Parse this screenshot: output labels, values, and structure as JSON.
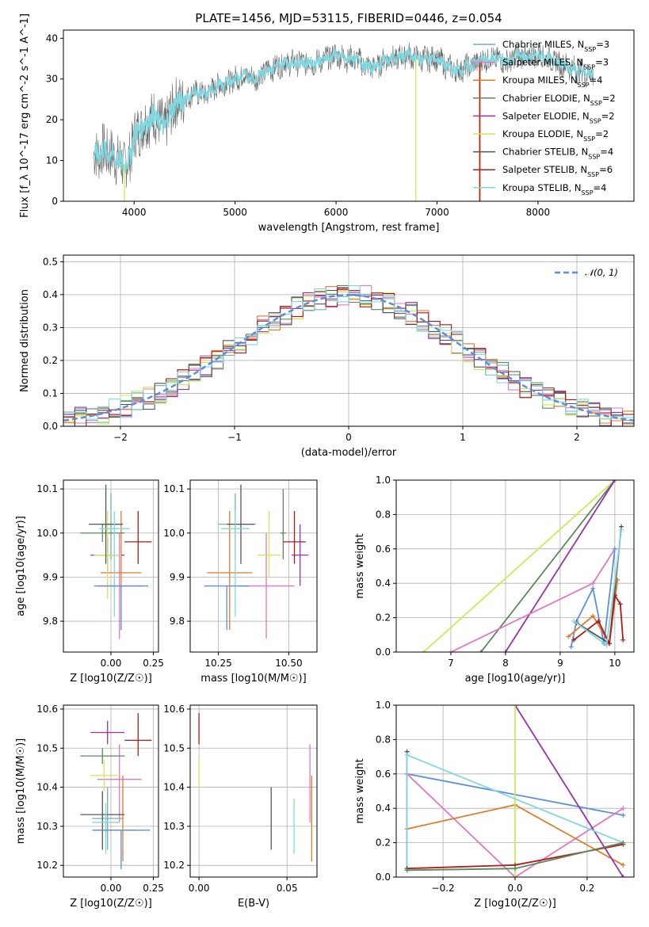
{
  "figure": {
    "title": "PLATE=1456, MJD=53115, FIBERID=0446, z=0.054",
    "colors": {
      "Chabrier MILES": "#6fb0b0",
      "Salpeter MILES": "#e377c2",
      "Kroupa MILES": "#e07b2a",
      "Chabrier ELODIE": "#5b8a5b",
      "Salpeter ELODIE": "#9932aa",
      "Kroupa ELODIE": "#cfe856",
      "Chabrier STELIB": "#555555",
      "Salpeter STELIB": "#b21a1a",
      "Kroupa STELIB": "#7fd8e0",
      "main_grey": "#8a8a8a",
      "blue": "#5b8ee0",
      "pink": "#e88bc0"
    }
  },
  "chart_data": [
    {
      "id": "spectrum",
      "type": "line",
      "title": "PLATE=1456, MJD=53115, FIBERID=0446, z=0.054",
      "xlabel": "wavelength [Angstrom, rest frame]",
      "ylabel": "Flux [f_λ 10^-17 erg cm^-2 s^-1 A^-1]",
      "xlim": [
        3300,
        8950
      ],
      "ylim": [
        0,
        42
      ],
      "xticks": [
        4000,
        5000,
        6000,
        7000,
        8000
      ],
      "yticks": [
        0,
        10,
        20,
        30,
        40
      ],
      "grid": false,
      "legend_position": "top-right",
      "continuum": {
        "x": [
          3600,
          3700,
          3800,
          3900,
          3950,
          4000,
          4100,
          4200,
          4300,
          4400,
          4500,
          4600,
          4700,
          4800,
          4900,
          5000,
          5100,
          5200,
          5300,
          5400,
          5500,
          5600,
          5700,
          5800,
          5900,
          6000,
          6100,
          6200,
          6300,
          6400,
          6500,
          6600,
          6700,
          6800,
          6900,
          7000,
          7100,
          7200,
          7300,
          7400,
          7500,
          7600,
          7700,
          7800,
          7900,
          8000,
          8100,
          8200,
          8300,
          8400,
          8550
        ],
        "y": [
          11,
          12.5,
          11,
          9,
          10,
          16,
          19,
          21,
          18,
          24,
          25,
          27,
          26,
          28,
          29,
          30,
          31,
          30,
          32,
          33,
          34,
          34,
          34,
          34,
          35,
          36,
          35,
          35,
          33,
          33,
          35,
          35,
          36,
          35,
          35,
          35,
          33,
          32,
          33,
          34,
          35,
          35,
          34,
          36,
          35,
          36,
          35,
          34,
          33,
          32,
          31
        ]
      },
      "legend": [
        {
          "label": "Chabrier MILES",
          "nssp": "3"
        },
        {
          "label": "Salpeter MILES",
          "nssp": "3"
        },
        {
          "label": "Kroupa MILES",
          "nssp": "4"
        },
        {
          "label": "Chabrier ELODIE",
          "nssp": "2"
        },
        {
          "label": "Salpeter ELODIE",
          "nssp": "2"
        },
        {
          "label": "Kroupa ELODIE",
          "nssp": "2"
        },
        {
          "label": "Chabrier STELIB",
          "nssp": "4"
        },
        {
          "label": "Salpeter STELIB",
          "nssp": "6"
        },
        {
          "label": "Kroupa STELIB",
          "nssp": "4"
        }
      ]
    },
    {
      "id": "residuals",
      "type": "histogram",
      "xlabel": "(data-model)/error",
      "ylabel": "Normed distribution",
      "xlim": [
        -2.5,
        2.5
      ],
      "ylim": [
        0,
        0.52
      ],
      "xticks": [
        -2,
        -1,
        0,
        1,
        2
      ],
      "yticks": [
        0.0,
        0.1,
        0.2,
        0.3,
        0.4,
        0.5
      ],
      "grid": true,
      "legend": [
        {
          "label": "N(0,1)",
          "style": "dashed"
        }
      ],
      "legend_position": "top-right",
      "bin_width": 0.1,
      "reference_curve": "gaussian(0,1)"
    },
    {
      "id": "age_vs_Z",
      "type": "errorbar",
      "xlabel": "Z [log10(Z/Z☉)]",
      "ylabel": "age [log10(age/yr)]",
      "xlim": [
        -0.28,
        0.28
      ],
      "ylim": [
        9.73,
        10.12
      ],
      "xticks": [
        0.0,
        0.25
      ],
      "xticklabels": [
        "0.00",
        "0.25"
      ],
      "yticks": [
        9.8,
        9.9,
        10.0,
        10.1
      ],
      "grid": true,
      "points": [
        {
          "series": "Chabrier MILES",
          "x": 0.0,
          "y": 10.02,
          "xerr": [
            0.06,
            0.06
          ],
          "yerr": [
            0.08,
            0.07
          ]
        },
        {
          "series": "Salpeter MILES",
          "x": 0.05,
          "y": 9.88,
          "xerr": [
            0.13,
            0.13
          ],
          "yerr": [
            0.12,
            0.12
          ]
        },
        {
          "series": "Kroupa MILES",
          "x": 0.06,
          "y": 9.91,
          "xerr": [
            0.12,
            0.12
          ],
          "yerr": [
            0.13,
            0.14
          ]
        },
        {
          "series": "Chabrier ELODIE",
          "x": -0.05,
          "y": 10.0,
          "xerr": [
            0.13,
            0.13
          ],
          "yerr": [
            0.02,
            0.02
          ]
        },
        {
          "series": "Salpeter ELODIE",
          "x": -0.02,
          "y": 9.95,
          "xerr": [
            0.1,
            0.1
          ],
          "yerr": [
            0.04,
            0.04
          ]
        },
        {
          "series": "Kroupa ELODIE",
          "x": -0.02,
          "y": 9.95,
          "xerr": [
            0.08,
            0.08
          ],
          "yerr": [
            0.1,
            0.1
          ]
        },
        {
          "series": "Chabrier STELIB",
          "x": -0.03,
          "y": 10.02,
          "xerr": [
            0.1,
            0.1
          ],
          "yerr": [
            0.09,
            0.09
          ]
        },
        {
          "series": "Salpeter STELIB",
          "x": 0.16,
          "y": 9.98,
          "xerr": [
            0.08,
            0.08
          ],
          "yerr": [
            0.05,
            0.07
          ]
        },
        {
          "series": "Kroupa STELIB",
          "x": 0.02,
          "y": 10.01,
          "xerr": [
            0.09,
            0.09
          ],
          "yerr": [
            0.2,
            0.04
          ]
        },
        {
          "series": "blue",
          "x": 0.06,
          "y": 9.88,
          "xerr": [
            0.16,
            0.16
          ],
          "yerr": [
            0.1,
            0.0
          ]
        }
      ]
    },
    {
      "id": "age_vs_mass",
      "type": "errorbar",
      "xlabel": "mass [log10(M/M☉)]",
      "ylabel": "",
      "xlim": [
        10.15,
        10.6
      ],
      "ylim": [
        9.73,
        10.12
      ],
      "xticks": [
        10.25,
        10.5
      ],
      "xticklabels": [
        "10.25",
        "10.50"
      ],
      "yticks": [
        9.8,
        9.9,
        10.0,
        10.1
      ],
      "grid": true,
      "points": [
        {
          "series": "Chabrier MILES",
          "x": 10.31,
          "y": 10.02,
          "xerr": [
            0.06,
            0.06
          ],
          "yerr": [
            0.08,
            0.07
          ]
        },
        {
          "series": "Salpeter MILES",
          "x": 10.42,
          "y": 9.88,
          "xerr": [
            0.1,
            0.1
          ],
          "yerr": [
            0.12,
            0.12
          ]
        },
        {
          "series": "Kroupa MILES",
          "x": 10.29,
          "y": 9.91,
          "xerr": [
            0.08,
            0.08
          ],
          "yerr": [
            0.13,
            0.14
          ]
        },
        {
          "series": "Chabrier ELODIE",
          "x": 10.48,
          "y": 10.0,
          "xerr": [
            0.01,
            0.01
          ],
          "yerr": [
            0.06,
            0.1
          ]
        },
        {
          "series": "Salpeter ELODIE",
          "x": 10.54,
          "y": 9.95,
          "xerr": [
            0.03,
            0.03
          ],
          "yerr": [
            0.07,
            0.07
          ]
        },
        {
          "series": "Kroupa ELODIE",
          "x": 10.43,
          "y": 9.95,
          "xerr": [
            0.04,
            0.04
          ],
          "yerr": [
            0.05,
            0.1
          ]
        },
        {
          "series": "Chabrier STELIB",
          "x": 10.33,
          "y": 10.02,
          "xerr": [
            0.05,
            0.05
          ],
          "yerr": [
            0.09,
            0.09
          ]
        },
        {
          "series": "Salpeter STELIB",
          "x": 10.52,
          "y": 9.98,
          "xerr": [
            0.04,
            0.04
          ],
          "yerr": [
            0.05,
            0.07
          ]
        },
        {
          "series": "Kroupa STELIB",
          "x": 10.31,
          "y": 10.01,
          "xerr": [
            0.05,
            0.05
          ],
          "yerr": [
            0.2,
            0.04
          ]
        },
        {
          "series": "blue",
          "x": 10.28,
          "y": 9.88,
          "xerr": [
            0.08,
            0.08
          ],
          "yerr": [
            0.1,
            0.0
          ]
        }
      ]
    },
    {
      "id": "mass_weight_vs_age",
      "type": "line",
      "xlabel": "age  [log10(age/yr)]",
      "ylabel": "mass weight",
      "xlim": [
        6.0,
        10.35
      ],
      "ylim": [
        0,
        1.0
      ],
      "xticks": [
        7,
        8,
        9,
        10
      ],
      "yticks": [
        0.0,
        0.2,
        0.4,
        0.6,
        0.8,
        1.0
      ],
      "grid": true,
      "series": [
        {
          "name": "Kroupa ELODIE",
          "x": [
            6.5,
            10.0
          ],
          "y": [
            0.0,
            1.0
          ]
        },
        {
          "name": "Chabrier ELODIE",
          "x": [
            7.55,
            10.0
          ],
          "y": [
            0.0,
            1.0
          ]
        },
        {
          "name": "Salpeter ELODIE",
          "x": [
            8.0,
            10.0
          ],
          "y": [
            0.0,
            1.0
          ]
        },
        {
          "name": "Salpeter MILES",
          "x": [
            7.0,
            9.6,
            10.0
          ],
          "y": [
            0.0,
            0.4,
            0.6
          ]
        },
        {
          "name": "blue",
          "x": [
            9.2,
            9.3,
            9.6,
            9.8,
            10.0
          ],
          "y": [
            0.03,
            0.18,
            0.37,
            0.05,
            0.6
          ]
        },
        {
          "name": "Kroupa MILES",
          "x": [
            9.15,
            9.6,
            9.9,
            10.05
          ],
          "y": [
            0.09,
            0.21,
            0.05,
            0.42
          ]
        },
        {
          "name": "Chabrier STELIB",
          "x": [
            9.3,
            9.9,
            10.12
          ],
          "y": [
            0.17,
            0.05,
            0.73
          ]
        },
        {
          "name": "Salpeter STELIB",
          "x": [
            9.25,
            9.7,
            9.9,
            10.0,
            10.1,
            10.15
          ],
          "y": [
            0.07,
            0.18,
            0.05,
            0.33,
            0.28,
            0.07
          ]
        },
        {
          "name": "Kroupa STELIB",
          "x": [
            9.25,
            9.85,
            10.12
          ],
          "y": [
            0.18,
            0.04,
            0.71
          ]
        }
      ]
    },
    {
      "id": "mass_vs_Z",
      "type": "errorbar",
      "xlabel": "Z [log10(Z/Z☉)]",
      "ylabel": "mass [log10(M/M☉)]",
      "xlim": [
        -0.28,
        0.28
      ],
      "ylim": [
        10.17,
        10.61
      ],
      "xticks": [
        0.0,
        0.25
      ],
      "xticklabels": [
        "0.00",
        "0.25"
      ],
      "yticks": [
        10.2,
        10.3,
        10.4,
        10.5,
        10.6
      ],
      "grid": true,
      "points": [
        {
          "series": "Chabrier MILES",
          "x": -0.02,
          "y": 10.32,
          "xerr": [
            0.09,
            0.09
          ],
          "yerr": [
            0.08,
            0.08
          ]
        },
        {
          "series": "Salpeter MILES",
          "x": 0.05,
          "y": 10.42,
          "xerr": [
            0.13,
            0.13
          ],
          "yerr": [
            0.11,
            0.09
          ]
        },
        {
          "series": "Kroupa MILES",
          "x": 0.07,
          "y": 10.29,
          "xerr": [
            0.17,
            0.08
          ],
          "yerr": [
            0.08,
            0.14
          ]
        },
        {
          "series": "Chabrier ELODIE",
          "x": -0.05,
          "y": 10.48,
          "xerr": [
            0.13,
            0.13
          ],
          "yerr": [
            0.02,
            0.02
          ]
        },
        {
          "series": "Salpeter ELODIE",
          "x": -0.02,
          "y": 10.54,
          "xerr": [
            0.1,
            0.1
          ],
          "yerr": [
            0.03,
            0.03
          ]
        },
        {
          "series": "Kroupa ELODIE",
          "x": -0.04,
          "y": 10.43,
          "xerr": [
            0.08,
            0.08
          ],
          "yerr": [
            0.04,
            0.04
          ]
        },
        {
          "series": "Chabrier STELIB",
          "x": -0.05,
          "y": 10.33,
          "xerr": [
            0.13,
            0.13
          ],
          "yerr": [
            0.09,
            0.06
          ]
        },
        {
          "series": "Salpeter STELIB",
          "x": 0.16,
          "y": 10.52,
          "xerr": [
            0.08,
            0.08
          ],
          "yerr": [
            0.04,
            0.07
          ]
        },
        {
          "series": "Kroupa STELIB",
          "x": -0.03,
          "y": 10.31,
          "xerr": [
            0.08,
            0.08
          ],
          "yerr": [
            0.08,
            0.05
          ]
        },
        {
          "series": "blue",
          "x": 0.06,
          "y": 10.29,
          "xerr": [
            0.17,
            0.17
          ],
          "yerr": [
            0.1,
            0.0
          ]
        }
      ]
    },
    {
      "id": "mass_vs_EBV",
      "type": "errorbar",
      "xlabel": "E(B-V)",
      "ylabel": "",
      "xlim": [
        -0.005,
        0.067
      ],
      "ylim": [
        10.17,
        10.61
      ],
      "xticks": [
        0.0,
        0.05
      ],
      "xticklabels": [
        "0.00",
        "0.05"
      ],
      "yticks": [
        10.2,
        10.3,
        10.4,
        10.5,
        10.6
      ],
      "grid": true,
      "points": [
        {
          "series": "Chabrier STELIB",
          "x": 0.041,
          "y": 10.32,
          "xerr": [
            0,
            0
          ],
          "yerr": [
            0.08,
            0.08
          ]
        },
        {
          "series": "Kroupa STELIB",
          "x": 0.054,
          "y": 10.31,
          "xerr": [
            0,
            0
          ],
          "yerr": [
            0.08,
            0.06
          ]
        },
        {
          "series": "Salpeter MILES",
          "x": 0.063,
          "y": 10.42,
          "xerr": [
            0,
            0
          ],
          "yerr": [
            0.11,
            0.09
          ]
        },
        {
          "series": "Kroupa MILES",
          "x": 0.064,
          "y": 10.29,
          "xerr": [
            0,
            0
          ],
          "yerr": [
            0.08,
            0.14
          ]
        },
        {
          "series": "Salpeter STELIB",
          "x": 0.0,
          "y": 10.55,
          "xerr": [
            0,
            0
          ],
          "yerr": [
            0.04,
            0.04
          ]
        },
        {
          "series": "Kroupa ELODIE",
          "x": 0.0,
          "y": 10.43,
          "xerr": [
            0,
            0
          ],
          "yerr": [
            0.03,
            0.04
          ]
        }
      ]
    },
    {
      "id": "mass_weight_vs_Z",
      "type": "line",
      "xlabel": "Z [log10(Z/Z☉)]",
      "ylabel": "mass weight",
      "xlim": [
        -0.33,
        0.33
      ],
      "ylim": [
        0,
        1.0
      ],
      "xticks": [
        -0.2,
        0.0,
        0.2
      ],
      "xticklabels": [
        "−0.2",
        "0.0",
        "0.2"
      ],
      "yticks": [
        0.0,
        0.2,
        0.4,
        0.6,
        0.8,
        1.0
      ],
      "grid": true,
      "series": [
        {
          "name": "blue",
          "x": [
            -0.3,
            0.3
          ],
          "y": [
            0.6,
            0.36
          ]
        },
        {
          "name": "Salpeter MILES",
          "x": [
            -0.3,
            0.0,
            0.3
          ],
          "y": [
            0.6,
            0.0,
            0.4
          ]
        },
        {
          "name": "Kroupa MILES",
          "x": [
            -0.3,
            0.0,
            0.3
          ],
          "y": [
            0.28,
            0.42,
            0.07
          ]
        },
        {
          "name": "Salpeter ELODIE",
          "x": [
            0.0,
            0.3
          ],
          "y": [
            1.0,
            0.0
          ]
        },
        {
          "name": "Kroupa ELODIE",
          "x": [
            0.0,
            0.0
          ],
          "y": [
            0.0,
            1.0
          ]
        },
        {
          "name": "Chabrier STELIB",
          "x": [
            -0.3,
            -0.3
          ],
          "y": [
            0.04,
            0.73
          ]
        },
        {
          "name": "Kroupa STELIB",
          "x": [
            -0.3,
            -0.3,
            0.3
          ],
          "y": [
            0.04,
            0.71,
            0.2
          ]
        },
        {
          "name": "Salpeter STELIB",
          "x": [
            -0.3,
            0.0,
            0.3
          ],
          "y": [
            0.05,
            0.07,
            0.19
          ]
        },
        {
          "name": "Chabrier ELODIE",
          "x": [
            -0.3,
            0.0,
            0.3
          ],
          "y": [
            0.04,
            0.05,
            0.2
          ]
        }
      ]
    }
  ]
}
